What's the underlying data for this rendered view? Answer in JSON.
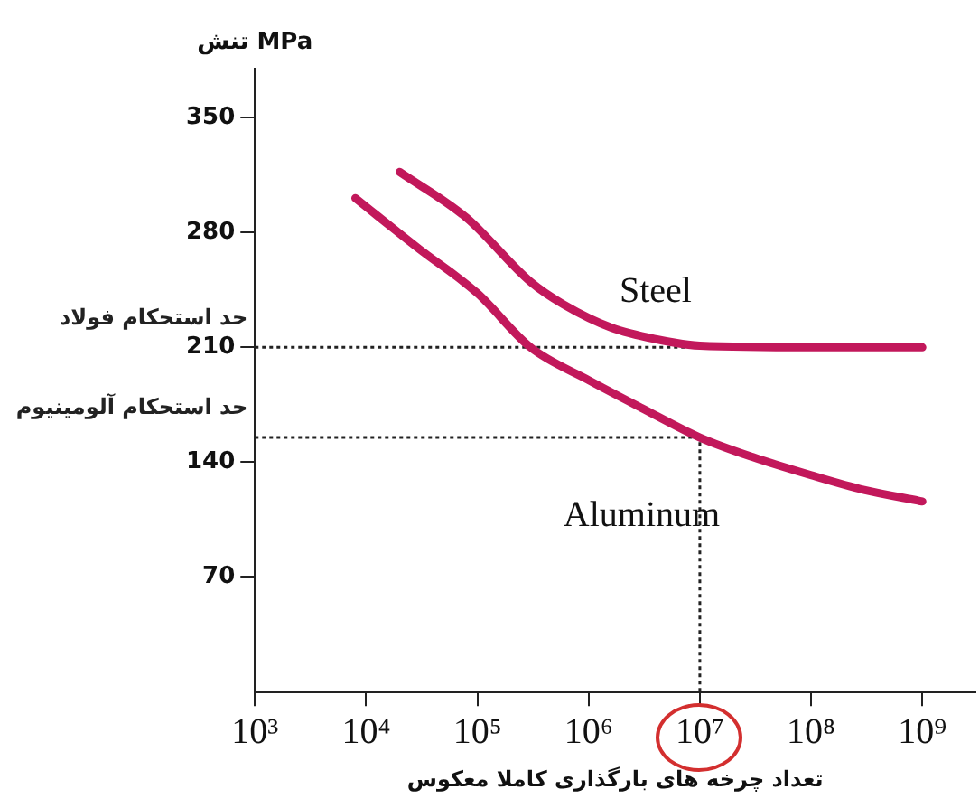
{
  "chart_data": {
    "type": "line",
    "ylabel": "تنش MPa",
    "xlabel": "تعداد چرخه های بارگذاری کاملا معکوس",
    "log": "x",
    "xlim": [
      1000,
      3000000000
    ],
    "xticks": [
      {
        "value": 1000,
        "label": "10³"
      },
      {
        "value": 10000,
        "label": "10⁴"
      },
      {
        "value": 100000,
        "label": "10⁵"
      },
      {
        "value": 1000000,
        "label": "10⁶"
      },
      {
        "value": 10000000,
        "label": "10⁷"
      },
      {
        "value": 100000000,
        "label": "10⁸"
      },
      {
        "value": 1000000000,
        "label": "10⁹"
      }
    ],
    "ylim": [
      0,
      380
    ],
    "yticks": [
      70,
      140,
      210,
      280,
      350
    ],
    "grid": false,
    "legend": false,
    "marker": "none",
    "line_style": "solid",
    "series": [
      {
        "name": "Steel",
        "color": "#c2185b",
        "x": [
          20000,
          80000,
          300000,
          600000,
          1600000,
          4000000,
          10000000,
          100000000,
          1000000000
        ],
        "values": [
          317,
          289,
          250,
          236,
          222,
          215,
          211,
          210,
          210
        ]
      },
      {
        "name": "Aluminum",
        "color": "#c2185b",
        "x": [
          8000,
          30000,
          100000,
          300000,
          1000000,
          3000000,
          10000000,
          30000000,
          100000000,
          300000000,
          1000000000
        ],
        "values": [
          301,
          270,
          243,
          210,
          190,
          173,
          155,
          143,
          132,
          123,
          116
        ]
      }
    ],
    "ref_lines": [
      {
        "axis": "y",
        "value": 210,
        "label": "حد استحکام فولاد",
        "color": "#222222",
        "line_style": "dotted"
      },
      {
        "axis": "y",
        "value": 155,
        "label": "حد استحکام آلومینیوم",
        "color": "#222222",
        "line_style": "dotted"
      },
      {
        "axis": "x",
        "value": 10000000,
        "color": "#222222",
        "line_style": "dotted"
      }
    ]
  }
}
